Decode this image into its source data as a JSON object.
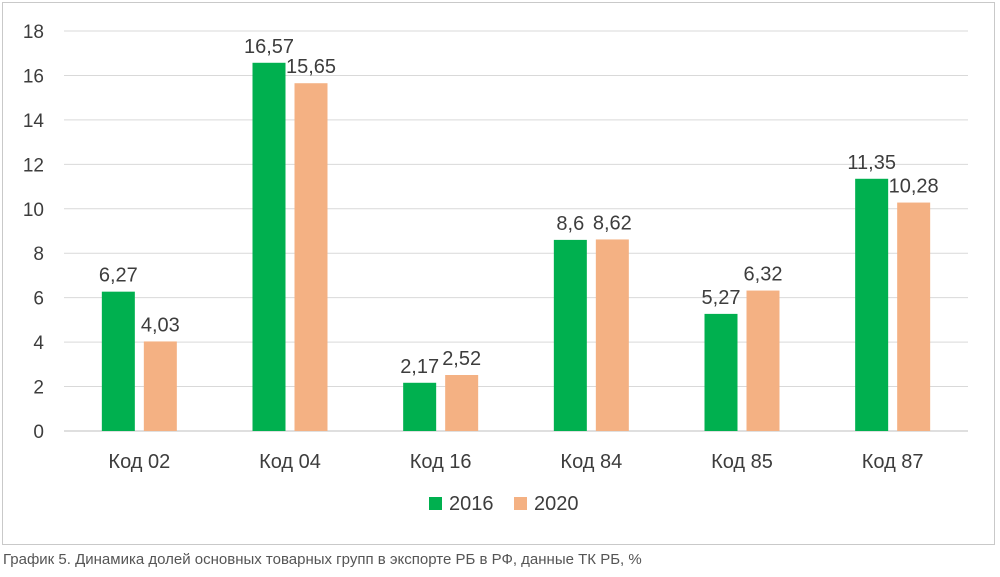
{
  "caption": "График 5. Динамика долей основных товарных групп в экспорте РБ в РФ, данные ТК РБ, %",
  "chart_data": {
    "type": "bar",
    "categories": [
      "Код 02",
      "Код 04",
      "Код 16",
      "Код 84",
      "Код 85",
      "Код 87"
    ],
    "series": [
      {
        "name": "2016",
        "color": "#00b04f",
        "values": [
          6.27,
          16.57,
          2.17,
          8.6,
          5.27,
          11.35
        ],
        "labels": [
          "6,27",
          "16,57",
          "2,17",
          "8,6",
          "5,27",
          "11,35"
        ]
      },
      {
        "name": "2020",
        "color": "#f4b183",
        "values": [
          4.03,
          15.65,
          2.52,
          8.62,
          6.32,
          10.28
        ],
        "labels": [
          "4,03",
          "15,65",
          "2,52",
          "8,62",
          "6,32",
          "10,28"
        ]
      }
    ],
    "ylim": [
      0,
      18
    ],
    "yticks": [
      0,
      2,
      4,
      6,
      8,
      10,
      12,
      14,
      16,
      18
    ],
    "grid": true,
    "legend_position": "bottom"
  }
}
